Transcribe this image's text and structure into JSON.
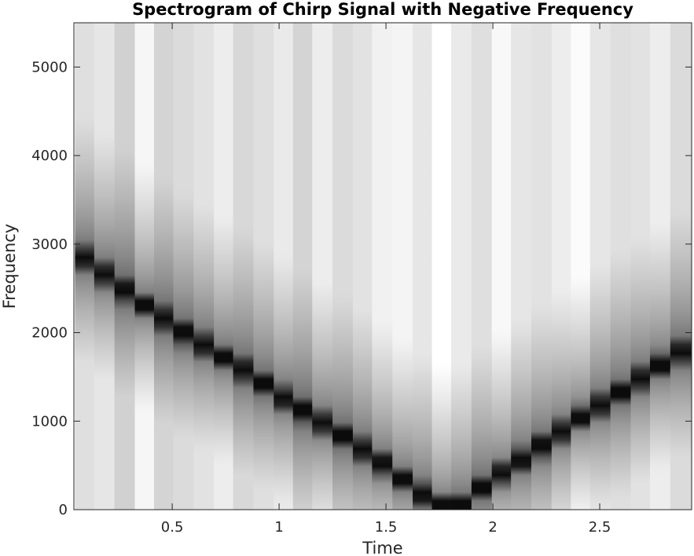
{
  "chart_data": {
    "type": "heatmap",
    "title": "Spectrogram of Chirp Signal with Negative Frequency",
    "xlabel": "Time",
    "ylabel": "Frequency",
    "xlim": [
      0.04,
      2.93
    ],
    "ylim": [
      0,
      5500
    ],
    "xticks": [
      0.5,
      1,
      1.5,
      2,
      2.5
    ],
    "xtick_labels": [
      "0.5",
      "1",
      "1.5",
      "2",
      "2.5"
    ],
    "yticks": [
      0,
      1000,
      2000,
      3000,
      4000,
      5000
    ],
    "ytick_labels": [
      "0",
      "1000",
      "2000",
      "3000",
      "4000",
      "5000"
    ],
    "colormap": "gray",
    "time_bins": [
      0.09,
      0.18,
      0.28,
      0.37,
      0.46,
      0.55,
      0.65,
      0.74,
      0.83,
      0.93,
      1.02,
      1.11,
      1.2,
      1.3,
      1.39,
      1.48,
      1.58,
      1.67,
      1.76,
      1.85,
      1.95,
      2.04,
      2.13,
      2.23,
      2.32,
      2.41,
      2.5,
      2.6,
      2.69,
      2.78,
      2.88
    ],
    "ridge_frequency": [
      2840,
      2660,
      2480,
      2310,
      2160,
      2000,
      1860,
      1720,
      1580,
      1420,
      1260,
      1120,
      980,
      830,
      680,
      520,
      340,
      170,
      40,
      40,
      250,
      410,
      560,
      720,
      880,
      1040,
      1180,
      1320,
      1480,
      1630,
      1780
    ],
    "column_brightness": [
      0.82,
      0.86,
      0.74,
      0.95,
      0.76,
      0.8,
      0.84,
      0.9,
      0.78,
      0.82,
      0.88,
      0.76,
      0.9,
      0.8,
      0.84,
      0.92,
      0.94,
      0.86,
      1.0,
      0.88,
      0.82,
      0.96,
      0.86,
      0.84,
      0.9,
      0.98,
      0.86,
      0.82,
      0.84,
      0.9,
      0.8
    ]
  }
}
